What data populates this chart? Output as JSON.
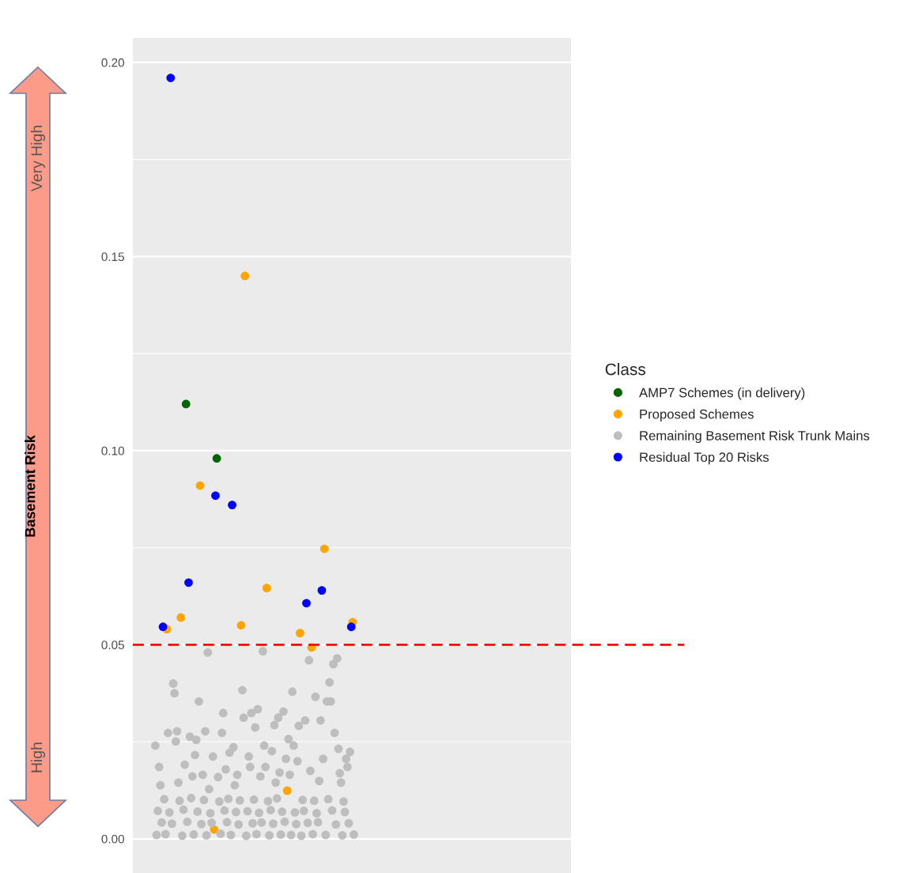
{
  "chart_data": {
    "type": "scatter",
    "ylabel": "Basement Risk",
    "legend_title": "Class",
    "annotations": [
      "Very High",
      "High"
    ],
    "categories": [
      null,
      null,
      null,
      null,
      null,
      null,
      null,
      null,
      null,
      null,
      null,
      null,
      null,
      null,
      null,
      null,
      null,
      null,
      null,
      null,
      null,
      null,
      null,
      null,
      null,
      null,
      null,
      null,
      null,
      null,
      null,
      null,
      null,
      null,
      null,
      null,
      null,
      null,
      null,
      null,
      null,
      null,
      null,
      null,
      null,
      null,
      null,
      null,
      null,
      null,
      null,
      null,
      null,
      null,
      null,
      null,
      null,
      null,
      null,
      null,
      null,
      null,
      null,
      null,
      null,
      null,
      null,
      null,
      null,
      null,
      null,
      null,
      null,
      null,
      null,
      null,
      null,
      null,
      null,
      null,
      null,
      null,
      null,
      null,
      null,
      null,
      null,
      null,
      null,
      null,
      null,
      null,
      null,
      null,
      null,
      null,
      null,
      null,
      null,
      null,
      null,
      null,
      null,
      null,
      null,
      null,
      null,
      null,
      null,
      null,
      null,
      null,
      null,
      null,
      null,
      null,
      null,
      null,
      null,
      null,
      null,
      null,
      null,
      null,
      null,
      null,
      null,
      null,
      null,
      null,
      null,
      null,
      null,
      null,
      null,
      null,
      null,
      null,
      null,
      null,
      null,
      null,
      null,
      null,
      null,
      null,
      null,
      null,
      null,
      null,
      null,
      null,
      null,
      null,
      null,
      null,
      null,
      null,
      null,
      null,
      null,
      null,
      null,
      null,
      null,
      null,
      null,
      null,
      null,
      null,
      null,
      null,
      null,
      null,
      null,
      null,
      null,
      null,
      null,
      null,
      null,
      null,
      null,
      null,
      null,
      null,
      null,
      null,
      null,
      null,
      null,
      null,
      null,
      null,
      null,
      null,
      null,
      null,
      null,
      null,
      null,
      null,
      null,
      null,
      null,
      null,
      null,
      null,
      null,
      null,
      null,
      null,
      null,
      null,
      null,
      null,
      null,
      null,
      null,
      null,
      null,
      null,
      null,
      null,
      null,
      null,
      null,
      null,
      null,
      null,
      null,
      null,
      null,
      null,
      null,
      null,
      null,
      null,
      null,
      null,
      null,
      null,
      null,
      null,
      null,
      null,
      null,
      null,
      null,
      null,
      null,
      null,
      null,
      null,
      null,
      null,
      null,
      null,
      null,
      null,
      null,
      null,
      null,
      null,
      null,
      null,
      null,
      null,
      null,
      null,
      null,
      null,
      null,
      null,
      null,
      null,
      null,
      null,
      null,
      null,
      null,
      null,
      null,
      null,
      null,
      null,
      null,
      null,
      null,
      null,
      null,
      null,
      null,
      null,
      null,
      null,
      null,
      null,
      null,
      null,
      null,
      null,
      null,
      null,
      null,
      null,
      null,
      null,
      null,
      null,
      null,
      null,
      null,
      null,
      null,
      null,
      null,
      null,
      null,
      null,
      null,
      null,
      null,
      null,
      null,
      null,
      null,
      null,
      null,
      null,
      null,
      null,
      null,
      null,
      null,
      null,
      null,
      null,
      null,
      null,
      null,
      null
    ],
    "ylim": [
      -0.0088,
      0.2063
    ],
    "yticks": [
      {
        "value": 0,
        "label": "0.00"
      },
      {
        "value": 0.05,
        "label": "0.05"
      },
      {
        "value": 0.1,
        "label": "0.10"
      },
      {
        "value": 0.15,
        "label": "0.15"
      },
      {
        "value": 0.2,
        "label": "0.20"
      }
    ],
    "tick_labels": "y",
    "grid": "y",
    "legend": "right",
    "marker": "circle",
    "ref_lines": [
      {
        "axis": "y",
        "value": 0.05,
        "color": "#ff0000",
        "line_style": "dashed"
      }
    ],
    "series": [
      {
        "name": "AMP7 Schemes (in delivery)",
        "color": "#006400",
        "values": [
          null,
          null,
          null,
          null,
          null,
          null,
          null,
          null,
          null,
          null,
          null,
          null,
          null,
          null,
          null,
          null,
          null,
          null,
          null,
          null,
          null,
          null,
          null,
          null,
          null,
          null,
          null,
          null,
          null,
          null,
          null,
          null,
          null,
          null,
          null,
          null,
          null,
          null,
          null,
          null,
          null,
          0.112,
          null,
          null,
          null,
          null,
          null,
          null,
          null,
          null,
          null,
          null,
          null,
          null,
          null,
          null,
          null,
          null,
          null,
          null,
          null,
          null,
          null,
          null,
          null,
          0.098,
          null,
          null,
          null,
          null,
          null,
          null,
          null,
          null,
          null,
          null,
          null,
          null,
          null,
          null,
          null,
          null,
          null,
          null,
          null,
          null,
          null,
          null,
          null,
          null,
          null,
          null,
          null,
          null,
          null,
          null,
          null,
          null,
          null,
          null,
          null,
          null,
          null,
          null,
          null,
          null,
          null,
          null,
          null,
          null,
          null,
          null,
          null,
          null,
          null,
          null,
          null,
          null,
          null,
          null,
          null,
          null,
          null,
          null,
          null,
          null,
          null,
          null,
          null,
          null,
          null,
          null,
          null,
          null,
          null,
          null,
          null,
          null,
          null,
          null,
          null,
          null,
          null,
          null,
          null,
          null,
          null,
          null,
          null,
          null,
          null,
          null,
          null,
          null,
          null,
          null,
          null,
          null,
          null,
          null,
          null,
          null,
          null,
          null,
          null,
          null,
          null,
          null,
          null,
          null,
          null,
          null,
          null,
          null,
          null,
          null,
          null,
          null,
          null,
          null,
          null,
          null,
          null,
          null,
          null,
          null,
          null,
          null,
          null,
          null,
          null,
          null,
          null,
          null,
          null,
          null,
          null,
          null,
          null,
          null,
          null,
          null,
          null,
          null,
          null,
          null,
          null,
          null,
          null,
          null,
          null,
          null,
          null,
          null,
          null,
          null,
          null,
          null,
          null,
          null,
          null,
          null,
          null,
          null,
          null,
          null,
          null,
          null,
          null,
          null,
          null,
          null,
          null,
          null,
          null,
          null,
          null,
          null,
          null,
          null,
          null,
          null,
          null,
          null,
          null,
          null,
          null,
          null,
          null,
          null,
          null,
          null,
          null,
          null,
          null,
          null,
          null,
          null,
          null,
          null,
          null,
          null,
          null,
          null,
          null,
          null,
          null,
          null,
          null,
          null,
          null,
          null,
          null,
          null,
          null,
          null,
          null,
          null,
          null,
          null,
          null,
          null,
          null,
          null,
          null,
          null,
          null,
          null,
          null,
          null,
          null,
          null,
          null,
          null,
          null,
          null,
          null,
          null,
          null,
          null,
          null,
          null,
          null,
          null,
          null,
          null,
          null,
          null,
          null,
          null,
          null,
          null,
          null,
          null,
          null,
          null,
          null,
          null,
          null,
          null,
          null,
          null,
          null,
          null,
          null,
          null,
          null,
          null,
          null,
          null,
          null,
          null,
          null,
          null,
          null,
          null,
          null,
          null,
          null,
          null,
          null,
          null
        ]
      },
      {
        "name": "Proposed Schemes",
        "color": "#ffa500",
        "values": [
          null,
          null,
          null,
          null,
          null,
          null,
          null,
          null,
          null,
          null,
          null,
          null,
          null,
          null,
          null,
          null,
          null,
          null,
          null,
          null,
          null,
          null,
          null,
          null,
          null,
          null,
          0.054,
          null,
          null,
          null,
          null,
          null,
          null,
          null,
          null,
          null,
          null,
          0.057,
          null,
          null,
          null,
          null,
          null,
          null,
          null,
          null,
          null,
          null,
          null,
          null,
          null,
          null,
          0.091,
          null,
          null,
          null,
          null,
          null,
          null,
          null,
          null,
          null,
          null,
          0.0024,
          null,
          null,
          null,
          null,
          null,
          null,
          null,
          null,
          null,
          null,
          null,
          null,
          null,
          null,
          null,
          null,
          null,
          null,
          null,
          null,
          0.055,
          null,
          null,
          0.145,
          null,
          null,
          null,
          null,
          null,
          null,
          null,
          null,
          null,
          null,
          null,
          null,
          null,
          null,
          null,
          null,
          0.0646,
          null,
          null,
          null,
          null,
          null,
          null,
          null,
          null,
          null,
          null,
          null,
          null,
          null,
          null,
          null,
          0.0124,
          null,
          null,
          null,
          null,
          null,
          null,
          null,
          null,
          null,
          0.053,
          null,
          null,
          null,
          null,
          null,
          null,
          null,
          null,
          0.0493,
          null,
          null,
          null,
          null,
          null,
          null,
          null,
          null,
          null,
          0.0747,
          null,
          null,
          null,
          null,
          null,
          null,
          null,
          null,
          null,
          null,
          null,
          null,
          null,
          null,
          null,
          null,
          null,
          null,
          null,
          null,
          null,
          0.0558,
          null,
          null,
          null,
          null,
          null,
          null,
          null,
          null,
          null,
          null,
          null,
          null,
          null,
          null,
          null,
          null,
          null,
          null,
          null,
          null,
          null,
          null,
          null,
          null,
          null,
          null,
          null,
          null,
          null,
          null,
          null,
          null,
          null,
          null,
          null,
          null,
          null,
          null,
          null,
          null,
          null,
          null,
          null,
          null,
          null,
          null,
          null,
          null,
          null,
          null,
          null,
          null,
          null,
          null,
          null,
          null,
          null,
          null,
          null,
          null,
          null,
          null,
          null,
          null,
          null,
          null,
          null,
          null,
          null,
          null,
          null,
          null,
          null,
          null,
          null,
          null,
          null,
          null,
          null,
          null,
          null,
          null,
          null,
          null,
          null,
          null,
          null,
          null,
          null,
          null,
          null,
          null,
          null,
          null,
          null,
          null,
          null,
          null,
          null,
          null,
          null,
          null,
          null,
          null,
          null,
          null,
          null,
          null,
          null,
          null,
          null,
          null,
          null,
          null,
          null,
          null,
          null,
          null,
          null,
          null,
          null,
          null,
          null,
          null,
          null,
          null,
          null,
          null,
          null,
          null,
          null,
          null,
          null,
          null,
          null,
          null,
          null,
          null,
          null,
          null,
          null,
          null,
          null,
          null,
          null,
          null,
          null,
          null,
          null,
          null,
          null,
          null,
          null,
          null,
          null,
          null,
          null,
          null,
          null,
          null,
          null,
          null,
          null,
          null,
          null,
          null,
          null,
          null,
          null,
          null
        ]
      },
      {
        "name": "Remaining Basement Risk Trunk Mains",
        "color": "#bebebe",
        "values": [
          null,
          null,
          null,
          null,
          null,
          null,
          null,
          null,
          null,
          null,
          null,
          null,
          null,
          null,
          null,
          null,
          null,
          0.024,
          0.001,
          0.0072,
          0.0185,
          0.0138,
          0.0042,
          null,
          0.0102,
          0.0012,
          null,
          0.0273,
          0.0068,
          null,
          0.0039,
          0.04,
          0.0375,
          0.0251,
          0.0277,
          0.0145,
          0.0098,
          null,
          0.0008,
          0.0075,
          0.0191,
          null,
          0.0044,
          null,
          0.0263,
          0.0105,
          0.0161,
          0.0011,
          0.0216,
          0.0255,
          0.007,
          0.0354,
          null,
          0.0038,
          0.0165,
          0.01,
          0.0277,
          0.0009,
          0.048,
          0.0128,
          0.0066,
          0.0041,
          0.0212,
          null,
          null,
          null,
          0.0159,
          0.0096,
          0.0013,
          0.0273,
          0.0324,
          0.0073,
          0.0179,
          0.0043,
          0.0103,
          0.0222,
          0.001,
          null,
          0.0236,
          0.0138,
          0.0069,
          0.0165,
          0.0037,
          0.0099,
          null,
          0.0383,
          0.0312,
          null,
          0.0008,
          0.0071,
          0.0212,
          0.0185,
          0.0324,
          0.004,
          0.0101,
          0.0287,
          0.0012,
          0.0334,
          0.0067,
          0.0161,
          0.0042,
          0.0483,
          0.024,
          0.0185,
          null,
          0.0097,
          0.0009,
          0.0074,
          0.0226,
          0.0039,
          0.0293,
          0.0145,
          0.0104,
          0.0312,
          0.0171,
          0.0011,
          0.007,
          0.0328,
          0.0044,
          0.0206,
          null,
          0.0257,
          0.0165,
          0.001,
          0.0379,
          0.024,
          0.0068,
          0.0038,
          0.02,
          0.0291,
          null,
          0.0008,
          0.01,
          0.0072,
          0.0305,
          null,
          0.0041,
          0.046,
          0.0175,
          null,
          0.0012,
          0.0098,
          0.0366,
          0.0066,
          0.0043,
          0.0149,
          0.0305,
          null,
          0.0206,
          null,
          0.001,
          0.0354,
          0.0102,
          0.0403,
          0.0354,
          0.0073,
          0.045,
          0.0273,
          0.0037,
          0.0465,
          0.0232,
          0.0169,
          0.0145,
          0.0009,
          0.0096,
          0.0069,
          0.0206,
          0.0185,
          0.004,
          0.0224,
          null,
          null,
          0.0011,
          null,
          null,
          null,
          null,
          null,
          null,
          null,
          null,
          null,
          null,
          null,
          null,
          null,
          null,
          null,
          null,
          null,
          null,
          null,
          null,
          null,
          null,
          null,
          null,
          null,
          null,
          null,
          null,
          null,
          null,
          null,
          null,
          null,
          null,
          null,
          null,
          null,
          null,
          null,
          null,
          null,
          null,
          null,
          null,
          null,
          null,
          null,
          null,
          null,
          null,
          null,
          null,
          null,
          null,
          null,
          null,
          null,
          null,
          null,
          null,
          null,
          null,
          null,
          null,
          null,
          null,
          null,
          null,
          null,
          null,
          null,
          null,
          null,
          null,
          null,
          null,
          null,
          null,
          null,
          null,
          null,
          null,
          null,
          null,
          null,
          null,
          null,
          null,
          null,
          null,
          null,
          null,
          null,
          null,
          null,
          null,
          null,
          null,
          null,
          null,
          null,
          null,
          null,
          null,
          null,
          null,
          null,
          null,
          null,
          null,
          null,
          null,
          null,
          null,
          null,
          null,
          null,
          null,
          null,
          null,
          null,
          null,
          null,
          null,
          null,
          null,
          null,
          null,
          null,
          null,
          null,
          null,
          null,
          null,
          null,
          null,
          null,
          null,
          null,
          null,
          null,
          null,
          null,
          null,
          null,
          null,
          null,
          null,
          null,
          null,
          null,
          null,
          null,
          null,
          null,
          null,
          null,
          null,
          null,
          null,
          null,
          null,
          null,
          null,
          null,
          null,
          null,
          null,
          null
        ]
      },
      {
        "name": "Residual Top 20 Risks",
        "color": "#0000ff",
        "values": [
          null,
          null,
          null,
          null,
          null,
          null,
          null,
          null,
          null,
          null,
          null,
          null,
          null,
          null,
          null,
          null,
          null,
          null,
          null,
          null,
          null,
          null,
          null,
          0.0546,
          null,
          null,
          null,
          null,
          null,
          0.196,
          null,
          null,
          null,
          null,
          null,
          null,
          null,
          null,
          null,
          null,
          null,
          null,
          null,
          0.066,
          null,
          null,
          null,
          null,
          null,
          null,
          null,
          null,
          null,
          null,
          null,
          null,
          null,
          null,
          null,
          null,
          null,
          null,
          null,
          null,
          0.0884,
          null,
          null,
          null,
          null,
          null,
          null,
          null,
          null,
          null,
          null,
          null,
          null,
          0.086,
          null,
          null,
          null,
          null,
          null,
          null,
          null,
          null,
          null,
          null,
          null,
          null,
          null,
          null,
          null,
          null,
          null,
          null,
          null,
          null,
          null,
          null,
          null,
          null,
          null,
          null,
          null,
          null,
          null,
          null,
          null,
          null,
          null,
          null,
          null,
          null,
          null,
          null,
          null,
          null,
          null,
          null,
          null,
          null,
          null,
          null,
          null,
          null,
          null,
          null,
          null,
          null,
          null,
          null,
          null,
          null,
          null,
          0.0607,
          null,
          null,
          null,
          null,
          null,
          null,
          null,
          null,
          null,
          null,
          null,
          0.064,
          null,
          null,
          null,
          null,
          null,
          null,
          null,
          null,
          null,
          null,
          null,
          null,
          null,
          null,
          null,
          null,
          null,
          null,
          null,
          null,
          null,
          null,
          0.0546,
          null,
          null,
          null,
          null,
          null,
          null,
          null,
          null,
          null,
          null,
          null,
          null,
          null,
          null,
          null,
          null,
          null,
          null,
          null,
          null,
          null,
          null,
          null,
          null,
          null,
          null,
          null,
          null,
          null,
          null,
          null,
          null,
          null,
          null,
          null,
          null,
          null,
          null,
          null,
          null,
          null,
          null,
          null,
          null,
          null,
          null,
          null,
          null,
          null,
          null,
          null,
          null,
          null,
          null,
          null,
          null,
          null,
          null,
          null,
          null,
          null,
          null,
          null,
          null,
          null,
          null,
          null,
          null,
          null,
          null,
          null,
          null,
          null,
          null,
          null,
          null,
          null,
          null,
          null,
          null,
          null,
          null,
          null,
          null,
          null,
          null,
          null,
          null,
          null,
          null,
          null,
          null,
          null,
          null,
          null,
          null,
          null,
          null,
          null,
          null,
          null,
          null,
          null,
          null,
          null,
          null,
          null,
          null,
          null,
          null,
          null,
          null,
          null,
          null,
          null,
          null,
          null,
          null,
          null,
          null,
          null,
          null,
          null,
          null,
          null,
          null,
          null,
          null,
          null,
          null,
          null,
          null,
          null,
          null,
          null,
          null,
          null,
          null,
          null,
          null,
          null,
          null,
          null,
          null,
          null,
          null,
          null,
          null,
          null,
          null,
          null,
          null,
          null,
          null,
          null,
          null,
          null,
          null,
          null,
          null,
          null,
          null,
          null,
          null,
          null,
          null,
          null,
          null,
          null,
          null,
          null
        ]
      }
    ]
  }
}
